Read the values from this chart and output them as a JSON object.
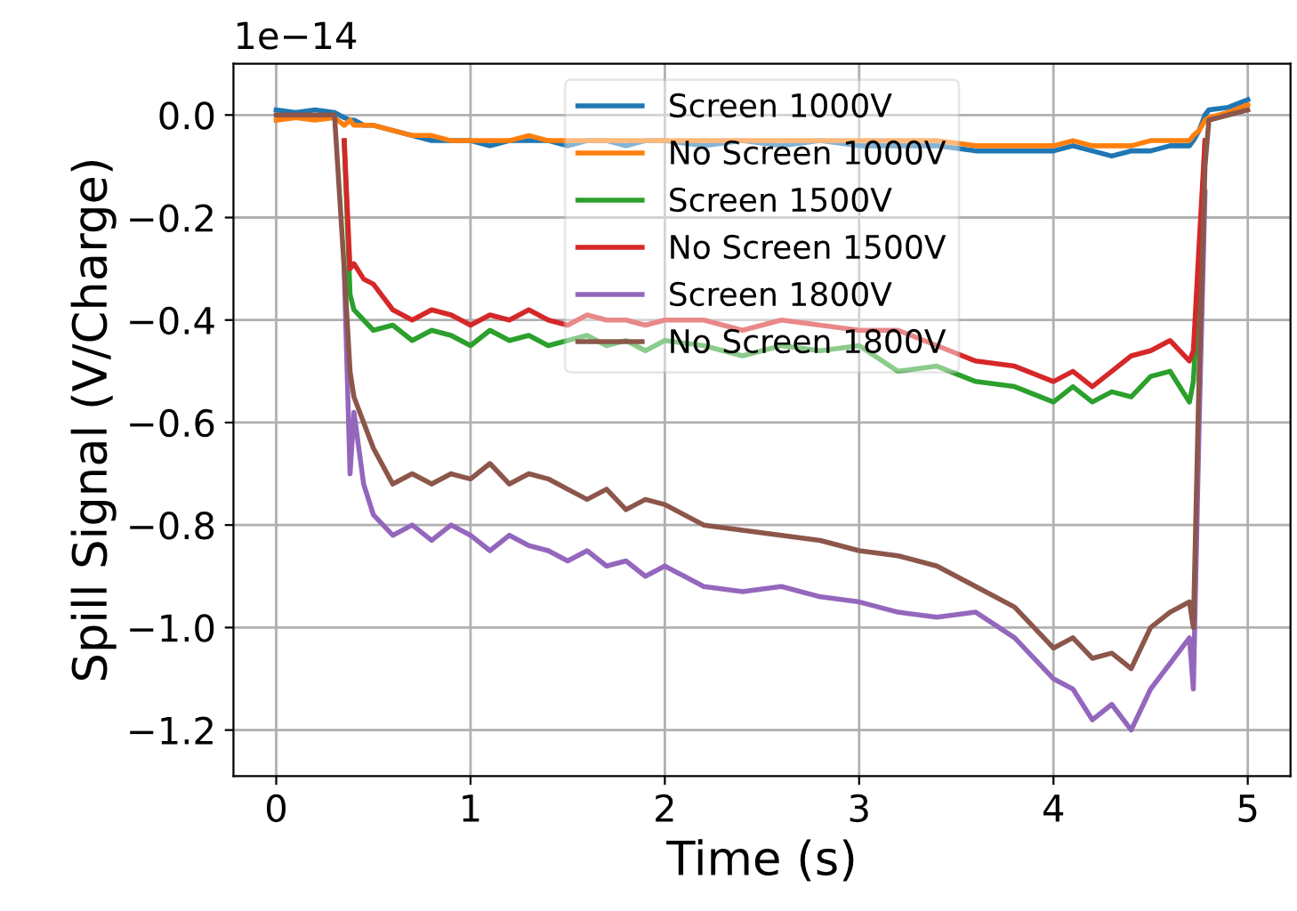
{
  "chart_data": {
    "type": "line",
    "xlabel": "Time (s)",
    "ylabel": "Spill Signal (V/Charge)",
    "annotations": [
      "1e−14"
    ],
    "x": [
      0,
      0.1,
      0.2,
      0.3,
      0.35,
      0.38,
      0.4,
      0.45,
      0.5,
      0.6,
      0.7,
      0.8,
      0.9,
      1.0,
      1.1,
      1.2,
      1.3,
      1.4,
      1.5,
      1.6,
      1.7,
      1.8,
      1.9,
      2.0,
      2.2,
      2.4,
      2.6,
      2.8,
      3.0,
      3.2,
      3.4,
      3.6,
      3.8,
      4.0,
      4.1,
      4.2,
      4.3,
      4.4,
      4.5,
      4.6,
      4.7,
      4.72,
      4.75,
      4.78,
      4.8,
      4.9,
      5.0
    ],
    "series": [
      {
        "name": "Screen 1000V",
        "color": "#1f77b4",
        "values": [
          0.01,
          0.005,
          0.01,
          0.005,
          -0.005,
          -0.01,
          -0.01,
          -0.02,
          -0.02,
          -0.03,
          -0.04,
          -0.05,
          -0.05,
          -0.05,
          -0.06,
          -0.05,
          -0.05,
          -0.05,
          -0.06,
          -0.05,
          -0.05,
          -0.06,
          -0.05,
          -0.05,
          -0.06,
          -0.05,
          -0.06,
          -0.05,
          -0.06,
          -0.06,
          -0.06,
          -0.07,
          -0.07,
          -0.07,
          -0.06,
          -0.07,
          -0.08,
          -0.07,
          -0.07,
          -0.06,
          -0.06,
          -0.05,
          -0.03,
          0.0,
          0.01,
          0.015,
          0.03
        ]
      },
      {
        "name": "No Screen 1000V",
        "color": "#ff7f0e",
        "values": [
          -0.01,
          -0.005,
          -0.01,
          -0.005,
          -0.02,
          -0.01,
          -0.02,
          -0.02,
          -0.02,
          -0.03,
          -0.04,
          -0.04,
          -0.05,
          -0.05,
          -0.05,
          -0.05,
          -0.04,
          -0.05,
          -0.05,
          -0.05,
          -0.05,
          -0.05,
          -0.05,
          -0.05,
          -0.05,
          -0.05,
          -0.05,
          -0.05,
          -0.05,
          -0.05,
          -0.05,
          -0.06,
          -0.06,
          -0.06,
          -0.05,
          -0.06,
          -0.06,
          -0.06,
          -0.05,
          -0.05,
          -0.05,
          -0.04,
          -0.03,
          -0.01,
          -0.005,
          0.005,
          0.02
        ]
      },
      {
        "name": "Screen 1500V",
        "color": "#2ca02c",
        "values": [
          null,
          null,
          null,
          null,
          -0.05,
          -0.35,
          -0.38,
          -0.4,
          -0.42,
          -0.41,
          -0.44,
          -0.42,
          -0.43,
          -0.45,
          -0.42,
          -0.44,
          -0.43,
          -0.45,
          -0.44,
          -0.43,
          -0.45,
          -0.44,
          -0.46,
          -0.44,
          -0.45,
          -0.47,
          -0.45,
          -0.46,
          -0.45,
          -0.5,
          -0.49,
          -0.52,
          -0.53,
          -0.56,
          -0.53,
          -0.56,
          -0.54,
          -0.55,
          -0.51,
          -0.5,
          -0.56,
          -0.52,
          -0.32,
          -0.05,
          null,
          null,
          null
        ]
      },
      {
        "name": "No Screen 1500V",
        "color": "#d62728",
        "values": [
          null,
          null,
          null,
          null,
          -0.05,
          -0.3,
          -0.29,
          -0.32,
          -0.33,
          -0.38,
          -0.4,
          -0.38,
          -0.39,
          -0.41,
          -0.39,
          -0.4,
          -0.38,
          -0.4,
          -0.41,
          -0.39,
          -0.4,
          -0.4,
          -0.41,
          -0.4,
          -0.4,
          -0.42,
          -0.4,
          -0.41,
          -0.42,
          -0.42,
          -0.45,
          -0.48,
          -0.49,
          -0.52,
          -0.5,
          -0.53,
          -0.5,
          -0.47,
          -0.46,
          -0.44,
          -0.48,
          -0.46,
          -0.25,
          -0.05,
          null,
          null,
          null
        ]
      },
      {
        "name": "Screen 1800V",
        "color": "#9467bd",
        "values": [
          null,
          null,
          null,
          null,
          -0.3,
          -0.7,
          -0.58,
          -0.72,
          -0.78,
          -0.82,
          -0.8,
          -0.83,
          -0.8,
          -0.82,
          -0.85,
          -0.82,
          -0.84,
          -0.85,
          -0.87,
          -0.85,
          -0.88,
          -0.87,
          -0.9,
          -0.88,
          -0.92,
          -0.93,
          -0.92,
          -0.94,
          -0.95,
          -0.97,
          -0.98,
          -0.97,
          -1.02,
          -1.1,
          -1.12,
          -1.18,
          -1.15,
          -1.2,
          -1.12,
          -1.07,
          -1.02,
          -1.12,
          -0.6,
          -0.15,
          null,
          null,
          null
        ]
      },
      {
        "name": "No Screen 1800V",
        "color": "#8c564b",
        "values": [
          0.0,
          0.0,
          0.0,
          0.0,
          -0.3,
          -0.5,
          -0.55,
          -0.6,
          -0.65,
          -0.72,
          -0.7,
          -0.72,
          -0.7,
          -0.71,
          -0.68,
          -0.72,
          -0.7,
          -0.71,
          -0.73,
          -0.75,
          -0.73,
          -0.77,
          -0.75,
          -0.76,
          -0.8,
          -0.81,
          -0.82,
          -0.83,
          -0.85,
          -0.86,
          -0.88,
          -0.92,
          -0.96,
          -1.04,
          -1.02,
          -1.06,
          -1.05,
          -1.08,
          -1.0,
          -0.97,
          -0.95,
          -1.0,
          -0.5,
          -0.1,
          -0.01,
          0.0,
          0.01
        ]
      }
    ],
    "xlim": [
      -0.22,
      5.22
    ],
    "ylim": [
      -1.29,
      0.1
    ],
    "xticks": [
      0,
      1,
      2,
      3,
      4,
      5
    ],
    "yticks": [
      {
        "value": 0,
        "label": "0.0"
      },
      {
        "value": -0.2,
        "label": "−0.2"
      },
      {
        "value": -0.4,
        "label": "−0.4"
      },
      {
        "value": -0.6,
        "label": "−0.6"
      },
      {
        "value": -0.8,
        "label": "−0.8"
      },
      {
        "value": -1.0,
        "label": "−1.0"
      },
      {
        "value": -1.2,
        "label": "−1.2"
      }
    ],
    "grid": true,
    "legend": "top",
    "marker": "none",
    "line_style": "solid"
  }
}
